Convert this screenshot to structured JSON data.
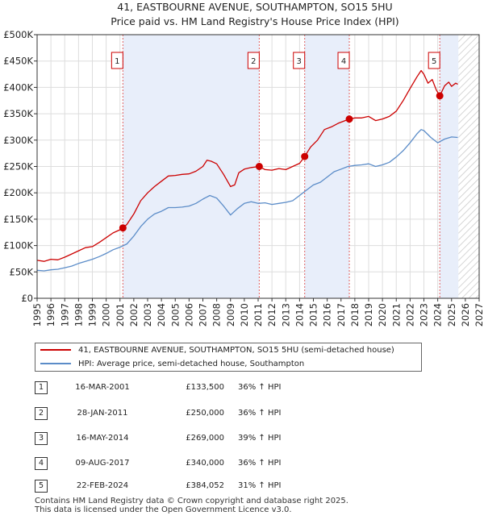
{
  "chart_data": {
    "type": "line",
    "title": "41, EASTBOURNE AVENUE, SOUTHAMPTON, SO15 5HU",
    "subtitle": "Price paid vs. HM Land Registry's House Price Index (HPI)",
    "x_ticks": [
      1995,
      1996,
      1997,
      1998,
      1999,
      2000,
      2001,
      2002,
      2003,
      2004,
      2005,
      2006,
      2007,
      2008,
      2009,
      2010,
      2011,
      2012,
      2013,
      2014,
      2015,
      2016,
      2017,
      2018,
      2019,
      2020,
      2021,
      2022,
      2023,
      2024,
      2025,
      2026,
      2027
    ],
    "y_ticks": [
      0,
      50000,
      100000,
      150000,
      200000,
      250000,
      300000,
      350000,
      400000,
      450000,
      500000
    ],
    "y_tick_labels": [
      "£0",
      "£50K",
      "£100K",
      "£150K",
      "£200K",
      "£250K",
      "£300K",
      "£350K",
      "£400K",
      "£450K",
      "£500K"
    ],
    "xlim": [
      1995,
      2027
    ],
    "ylim": [
      0,
      500000
    ],
    "grid": true,
    "future_hatch_start": 2025.5,
    "shaded_bands": [
      [
        2001.21,
        2011.08
      ],
      [
        2014.37,
        2017.6
      ],
      [
        2024.15,
        2025.5
      ]
    ],
    "series": [
      {
        "name": "41, EASTBOURNE AVENUE, SOUTHAMPTON, SO15 5HU (semi-detached house)",
        "color": "#cc0000",
        "points": [
          [
            1995.0,
            72000
          ],
          [
            1995.5,
            70000
          ],
          [
            1996.0,
            74000
          ],
          [
            1996.5,
            73000
          ],
          [
            1997.0,
            78000
          ],
          [
            1997.5,
            84000
          ],
          [
            1998.0,
            90000
          ],
          [
            1998.5,
            96000
          ],
          [
            1999.0,
            98000
          ],
          [
            1999.5,
            106000
          ],
          [
            2000.0,
            115000
          ],
          [
            2000.5,
            124000
          ],
          [
            2001.0,
            130000
          ],
          [
            2001.21,
            133500
          ],
          [
            2001.5,
            140000
          ],
          [
            2002.0,
            160000
          ],
          [
            2002.5,
            185000
          ],
          [
            2003.0,
            200000
          ],
          [
            2003.5,
            212000
          ],
          [
            2004.0,
            222000
          ],
          [
            2004.5,
            232000
          ],
          [
            2005.0,
            233000
          ],
          [
            2005.5,
            235000
          ],
          [
            2006.0,
            236000
          ],
          [
            2006.5,
            241000
          ],
          [
            2007.0,
            250000
          ],
          [
            2007.3,
            262000
          ],
          [
            2007.6,
            260000
          ],
          [
            2008.0,
            255000
          ],
          [
            2008.5,
            235000
          ],
          [
            2009.0,
            212000
          ],
          [
            2009.3,
            215000
          ],
          [
            2009.6,
            238000
          ],
          [
            2010.0,
            245000
          ],
          [
            2010.5,
            248000
          ],
          [
            2011.08,
            250000
          ],
          [
            2011.5,
            244000
          ],
          [
            2012.0,
            243000
          ],
          [
            2012.5,
            246000
          ],
          [
            2013.0,
            244000
          ],
          [
            2013.5,
            250000
          ],
          [
            2014.0,
            256000
          ],
          [
            2014.37,
            269000
          ],
          [
            2014.8,
            287000
          ],
          [
            2015.3,
            300000
          ],
          [
            2015.8,
            320000
          ],
          [
            2016.3,
            325000
          ],
          [
            2016.8,
            332000
          ],
          [
            2017.3,
            337000
          ],
          [
            2017.6,
            340000
          ],
          [
            2018.0,
            342000
          ],
          [
            2018.5,
            342000
          ],
          [
            2019.0,
            345000
          ],
          [
            2019.5,
            337000
          ],
          [
            2020.0,
            340000
          ],
          [
            2020.5,
            345000
          ],
          [
            2021.0,
            355000
          ],
          [
            2021.5,
            375000
          ],
          [
            2022.0,
            398000
          ],
          [
            2022.5,
            420000
          ],
          [
            2022.8,
            432000
          ],
          [
            2023.0,
            425000
          ],
          [
            2023.3,
            408000
          ],
          [
            2023.6,
            415000
          ],
          [
            2023.9,
            395000
          ],
          [
            2024.15,
            384052
          ],
          [
            2024.5,
            403000
          ],
          [
            2024.8,
            410000
          ],
          [
            2025.0,
            402000
          ],
          [
            2025.3,
            408000
          ],
          [
            2025.45,
            406000
          ]
        ]
      },
      {
        "name": "HPI: Average price, semi-detached house, Southampton",
        "color": "#5b8cc8",
        "points": [
          [
            1995.0,
            53000
          ],
          [
            1995.5,
            52000
          ],
          [
            1996.0,
            54000
          ],
          [
            1996.5,
            55000
          ],
          [
            1997.0,
            58000
          ],
          [
            1997.5,
            61000
          ],
          [
            1998.0,
            66000
          ],
          [
            1998.5,
            70000
          ],
          [
            1999.0,
            74000
          ],
          [
            1999.5,
            79000
          ],
          [
            2000.0,
            85000
          ],
          [
            2000.5,
            92000
          ],
          [
            2001.0,
            97000
          ],
          [
            2001.5,
            103000
          ],
          [
            2002.0,
            118000
          ],
          [
            2002.5,
            136000
          ],
          [
            2003.0,
            150000
          ],
          [
            2003.5,
            160000
          ],
          [
            2004.0,
            165000
          ],
          [
            2004.5,
            172000
          ],
          [
            2005.0,
            172000
          ],
          [
            2005.5,
            173000
          ],
          [
            2006.0,
            175000
          ],
          [
            2006.5,
            180000
          ],
          [
            2007.0,
            188000
          ],
          [
            2007.5,
            195000
          ],
          [
            2008.0,
            190000
          ],
          [
            2008.5,
            175000
          ],
          [
            2009.0,
            158000
          ],
          [
            2009.5,
            170000
          ],
          [
            2010.0,
            180000
          ],
          [
            2010.5,
            183000
          ],
          [
            2011.0,
            180000
          ],
          [
            2011.5,
            181000
          ],
          [
            2012.0,
            178000
          ],
          [
            2012.5,
            180000
          ],
          [
            2013.0,
            182000
          ],
          [
            2013.5,
            185000
          ],
          [
            2014.0,
            195000
          ],
          [
            2014.5,
            205000
          ],
          [
            2015.0,
            215000
          ],
          [
            2015.5,
            220000
          ],
          [
            2016.0,
            230000
          ],
          [
            2016.5,
            240000
          ],
          [
            2017.0,
            245000
          ],
          [
            2017.5,
            250000
          ],
          [
            2018.0,
            252000
          ],
          [
            2018.5,
            253000
          ],
          [
            2019.0,
            255000
          ],
          [
            2019.5,
            250000
          ],
          [
            2020.0,
            253000
          ],
          [
            2020.5,
            258000
          ],
          [
            2021.0,
            268000
          ],
          [
            2021.5,
            280000
          ],
          [
            2022.0,
            295000
          ],
          [
            2022.5,
            312000
          ],
          [
            2022.8,
            320000
          ],
          [
            2023.0,
            318000
          ],
          [
            2023.5,
            305000
          ],
          [
            2024.0,
            295000
          ],
          [
            2024.5,
            302000
          ],
          [
            2025.0,
            306000
          ],
          [
            2025.45,
            305000
          ]
        ]
      }
    ],
    "transactions": [
      {
        "num": "1",
        "year": 2001.21,
        "price": 133500,
        "date": "16-MAR-2001",
        "price_label": "£133,500",
        "hpi": "36% ↑ HPI"
      },
      {
        "num": "2",
        "year": 2011.08,
        "price": 250000,
        "date": "28-JAN-2011",
        "price_label": "£250,000",
        "hpi": "36% ↑ HPI"
      },
      {
        "num": "3",
        "year": 2014.37,
        "price": 269000,
        "date": "16-MAY-2014",
        "price_label": "£269,000",
        "hpi": "39% ↑ HPI"
      },
      {
        "num": "4",
        "year": 2017.6,
        "price": 340000,
        "date": "09-AUG-2017",
        "price_label": "£340,000",
        "hpi": "36% ↑ HPI"
      },
      {
        "num": "5",
        "year": 2024.15,
        "price": 384052,
        "date": "22-FEB-2024",
        "price_label": "£384,052",
        "hpi": "31% ↑ HPI"
      }
    ]
  },
  "legend": {
    "property_label": "41, EASTBOURNE AVENUE, SOUTHAMPTON, SO15 5HU (semi-detached house)",
    "hpi_label": "HPI: Average price, semi-detached house, Southampton"
  },
  "footer": {
    "line1": "Contains HM Land Registry data © Crown copyright and database right 2025.",
    "line2": "This data is licensed under the Open Government Licence v3.0."
  }
}
